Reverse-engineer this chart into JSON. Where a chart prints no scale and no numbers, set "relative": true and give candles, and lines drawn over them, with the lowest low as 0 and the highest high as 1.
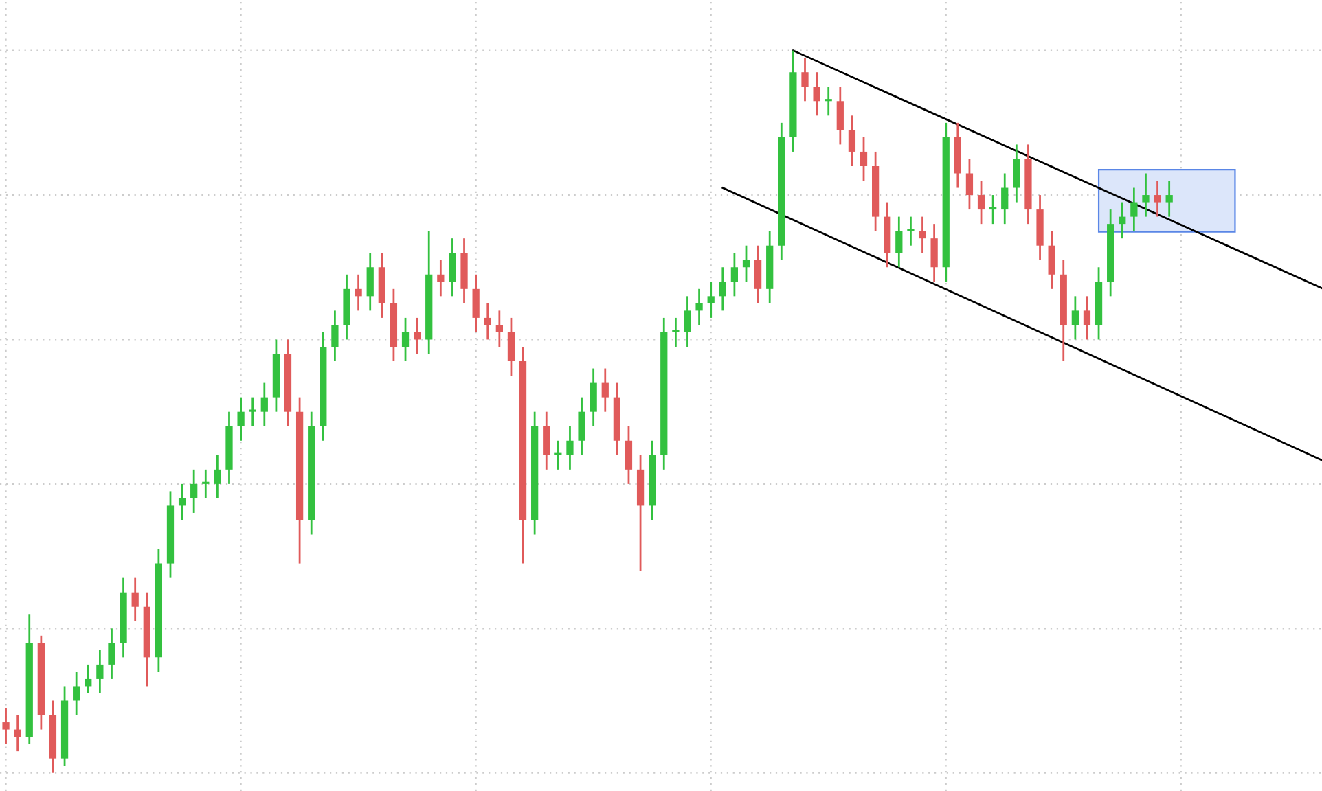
{
  "chart_data": {
    "type": "candlestick",
    "relative": true,
    "grid": true,
    "categories": [
      null,
      null,
      null,
      null,
      null,
      null,
      null,
      null,
      null,
      null,
      null,
      null,
      null,
      null,
      null,
      null,
      null,
      null,
      null,
      null,
      null,
      null,
      null,
      null,
      null,
      null,
      null,
      null,
      null,
      null,
      null,
      null,
      null,
      null,
      null,
      null,
      null,
      null,
      null,
      null,
      null,
      null,
      null,
      null,
      null,
      null,
      null,
      null,
      null,
      null,
      null,
      null,
      null,
      null,
      null,
      null,
      null,
      null,
      null,
      null,
      null,
      null,
      null,
      null,
      null,
      null,
      null,
      null,
      null,
      null,
      null,
      null,
      null,
      null,
      null,
      null,
      null,
      null,
      null,
      null,
      null,
      null,
      null,
      null,
      null,
      null,
      null,
      null,
      null,
      null,
      null,
      null,
      null,
      null,
      null,
      null,
      null,
      null,
      null,
      null,
      null,
      null,
      null,
      null,
      null,
      null,
      null,
      null,
      null,
      null,
      null,
      null,
      null
    ],
    "ohlc": [
      [
        0.07,
        0.09,
        0.04,
        0.06
      ],
      [
        0.06,
        0.08,
        0.03,
        0.05
      ],
      [
        0.05,
        0.22,
        0.04,
        0.18
      ],
      [
        0.18,
        0.19,
        0.06,
        0.08
      ],
      [
        0.08,
        0.1,
        0,
        0.02
      ],
      [
        0.02,
        0.12,
        0.01,
        0.1
      ],
      [
        0.1,
        0.14,
        0.08,
        0.12
      ],
      [
        0.12,
        0.15,
        0.11,
        0.13
      ],
      [
        0.13,
        0.17,
        0.11,
        0.15
      ],
      [
        0.15,
        0.2,
        0.13,
        0.18
      ],
      [
        0.18,
        0.27,
        0.16,
        0.25
      ],
      [
        0.25,
        0.27,
        0.21,
        0.23
      ],
      [
        0.23,
        0.25,
        0.12,
        0.16
      ],
      [
        0.16,
        0.31,
        0.14,
        0.29
      ],
      [
        0.29,
        0.39,
        0.27,
        0.37
      ],
      [
        0.37,
        0.4,
        0.35,
        0.38
      ],
      [
        0.38,
        0.42,
        0.36,
        0.4
      ],
      [
        0.4,
        0.42,
        0.38,
        0.4
      ],
      [
        0.4,
        0.44,
        0.38,
        0.42
      ],
      [
        0.42,
        0.5,
        0.4,
        0.48
      ],
      [
        0.48,
        0.52,
        0.46,
        0.5
      ],
      [
        0.5,
        0.52,
        0.48,
        0.5
      ],
      [
        0.5,
        0.54,
        0.48,
        0.52
      ],
      [
        0.52,
        0.6,
        0.5,
        0.58
      ],
      [
        0.58,
        0.6,
        0.48,
        0.5
      ],
      [
        0.5,
        0.52,
        0.29,
        0.35
      ],
      [
        0.35,
        0.5,
        0.33,
        0.48
      ],
      [
        0.48,
        0.61,
        0.46,
        0.59
      ],
      [
        0.59,
        0.64,
        0.57,
        0.62
      ],
      [
        0.62,
        0.69,
        0.6,
        0.67
      ],
      [
        0.67,
        0.69,
        0.64,
        0.66
      ],
      [
        0.66,
        0.72,
        0.64,
        0.7
      ],
      [
        0.7,
        0.72,
        0.63,
        0.65
      ],
      [
        0.65,
        0.67,
        0.57,
        0.59
      ],
      [
        0.59,
        0.63,
        0.57,
        0.61
      ],
      [
        0.61,
        0.63,
        0.58,
        0.6
      ],
      [
        0.6,
        0.75,
        0.58,
        0.69
      ],
      [
        0.69,
        0.71,
        0.66,
        0.68
      ],
      [
        0.68,
        0.74,
        0.66,
        0.72
      ],
      [
        0.72,
        0.74,
        0.65,
        0.67
      ],
      [
        0.67,
        0.69,
        0.61,
        0.63
      ],
      [
        0.63,
        0.65,
        0.6,
        0.62
      ],
      [
        0.62,
        0.64,
        0.59,
        0.61
      ],
      [
        0.61,
        0.63,
        0.55,
        0.57
      ],
      [
        0.57,
        0.59,
        0.29,
        0.35
      ],
      [
        0.35,
        0.5,
        0.33,
        0.48
      ],
      [
        0.48,
        0.5,
        0.42,
        0.44
      ],
      [
        0.44,
        0.46,
        0.42,
        0.44
      ],
      [
        0.44,
        0.48,
        0.42,
        0.46
      ],
      [
        0.46,
        0.52,
        0.44,
        0.5
      ],
      [
        0.5,
        0.56,
        0.48,
        0.54
      ],
      [
        0.54,
        0.56,
        0.5,
        0.52
      ],
      [
        0.52,
        0.54,
        0.44,
        0.46
      ],
      [
        0.46,
        0.48,
        0.4,
        0.42
      ],
      [
        0.42,
        0.44,
        0.28,
        0.37
      ],
      [
        0.37,
        0.46,
        0.35,
        0.44
      ],
      [
        0.44,
        0.63,
        0.42,
        0.61
      ],
      [
        0.61,
        0.63,
        0.59,
        0.61
      ],
      [
        0.61,
        0.66,
        0.59,
        0.64
      ],
      [
        0.64,
        0.67,
        0.62,
        0.65
      ],
      [
        0.65,
        0.68,
        0.63,
        0.66
      ],
      [
        0.66,
        0.7,
        0.64,
        0.68
      ],
      [
        0.68,
        0.72,
        0.66,
        0.7
      ],
      [
        0.7,
        0.73,
        0.68,
        0.71
      ],
      [
        0.71,
        0.73,
        0.65,
        0.67
      ],
      [
        0.67,
        0.75,
        0.65,
        0.73
      ],
      [
        0.73,
        0.9,
        0.71,
        0.88
      ],
      [
        0.88,
        1,
        0.86,
        0.97
      ],
      [
        0.97,
        0.99,
        0.93,
        0.95
      ],
      [
        0.95,
        0.97,
        0.91,
        0.93
      ],
      [
        0.93,
        0.95,
        0.91,
        0.93
      ],
      [
        0.93,
        0.95,
        0.87,
        0.89
      ],
      [
        0.89,
        0.91,
        0.84,
        0.86
      ],
      [
        0.86,
        0.88,
        0.82,
        0.84
      ],
      [
        0.84,
        0.86,
        0.75,
        0.77
      ],
      [
        0.77,
        0.79,
        0.7,
        0.72
      ],
      [
        0.72,
        0.77,
        0.7,
        0.75
      ],
      [
        0.75,
        0.77,
        0.73,
        0.75
      ],
      [
        0.75,
        0.77,
        0.72,
        0.74
      ],
      [
        0.74,
        0.76,
        0.68,
        0.7
      ],
      [
        0.7,
        0.9,
        0.68,
        0.88
      ],
      [
        0.88,
        0.9,
        0.81,
        0.83
      ],
      [
        0.83,
        0.85,
        0.78,
        0.8
      ],
      [
        0.8,
        0.82,
        0.76,
        0.78
      ],
      [
        0.78,
        0.8,
        0.76,
        0.78
      ],
      [
        0.78,
        0.83,
        0.76,
        0.81
      ],
      [
        0.81,
        0.87,
        0.79,
        0.85
      ],
      [
        0.85,
        0.87,
        0.76,
        0.78
      ],
      [
        0.78,
        0.8,
        0.71,
        0.73
      ],
      [
        0.73,
        0.75,
        0.67,
        0.69
      ],
      [
        0.69,
        0.71,
        0.57,
        0.62
      ],
      [
        0.62,
        0.66,
        0.6,
        0.64
      ],
      [
        0.64,
        0.66,
        0.6,
        0.62
      ],
      [
        0.62,
        0.7,
        0.6,
        0.68
      ],
      [
        0.68,
        0.78,
        0.66,
        0.76
      ],
      [
        0.76,
        0.79,
        0.74,
        0.77
      ],
      [
        0.77,
        0.81,
        0.75,
        0.79
      ],
      [
        0.79,
        0.83,
        0.77,
        0.8
      ],
      [
        0.8,
        0.82,
        0.77,
        0.79
      ],
      [
        0.79,
        0.82,
        0.77,
        0.8
      ],
      null,
      null,
      null,
      null,
      null,
      null,
      null,
      null,
      null,
      null,
      null,
      null,
      null
    ],
    "colors": [
      "#e05a5a",
      "#e05a5a",
      "#33c13f",
      "#e05a5a",
      "#e05a5a",
      "#33c13f",
      "#33c13f",
      "#33c13f",
      "#33c13f",
      "#33c13f",
      "#33c13f",
      "#e05a5a",
      "#e05a5a",
      "#33c13f",
      "#33c13f",
      "#33c13f",
      "#33c13f",
      "#33c13f",
      "#33c13f",
      "#33c13f",
      "#33c13f",
      "#33c13f",
      "#33c13f",
      "#33c13f",
      "#e05a5a",
      "#e05a5a",
      "#33c13f",
      "#33c13f",
      "#33c13f",
      "#33c13f",
      "#e05a5a",
      "#33c13f",
      "#e05a5a",
      "#e05a5a",
      "#33c13f",
      "#e05a5a",
      "#33c13f",
      "#e05a5a",
      "#33c13f",
      "#e05a5a",
      "#e05a5a",
      "#e05a5a",
      "#e05a5a",
      "#e05a5a",
      "#e05a5a",
      "#33c13f",
      "#e05a5a",
      "#33c13f",
      "#33c13f",
      "#33c13f",
      "#33c13f",
      "#e05a5a",
      "#e05a5a",
      "#e05a5a",
      "#e05a5a",
      "#33c13f",
      "#33c13f",
      "#33c13f",
      "#33c13f",
      "#33c13f",
      "#33c13f",
      "#33c13f",
      "#33c13f",
      "#33c13f",
      "#e05a5a",
      "#33c13f",
      "#33c13f",
      "#33c13f",
      "#e05a5a",
      "#e05a5a",
      "#33c13f",
      "#e05a5a",
      "#e05a5a",
      "#e05a5a",
      "#e05a5a",
      "#e05a5a",
      "#33c13f",
      "#33c13f",
      "#e05a5a",
      "#e05a5a",
      "#33c13f",
      "#e05a5a",
      "#e05a5a",
      "#e05a5a",
      "#33c13f",
      "#33c13f",
      "#33c13f",
      "#e05a5a",
      "#e05a5a",
      "#e05a5a",
      "#e05a5a",
      "#33c13f",
      "#e05a5a",
      "#33c13f",
      "#33c13f",
      "#33c13f",
      "#33c13f",
      "#33c13f",
      "#e05a5a",
      "#33c13f",
      null,
      null,
      null,
      null,
      null,
      null,
      null,
      null,
      null,
      null,
      null,
      null,
      null
    ],
    "series": [
      {
        "type": "line",
        "values": [
          null,
          null,
          null,
          null,
          null,
          null,
          null,
          null,
          null,
          null,
          null,
          null,
          null,
          null,
          null,
          null,
          null,
          null,
          null,
          null,
          null,
          null,
          null,
          null,
          null,
          null,
          null,
          null,
          null,
          null,
          null,
          null,
          null,
          null,
          null,
          null,
          null,
          null,
          null,
          null,
          null,
          null,
          null,
          null,
          null,
          null,
          null,
          null,
          null,
          null,
          null,
          null,
          null,
          null,
          null,
          null,
          null,
          null,
          null,
          null,
          null,
          null,
          null,
          null,
          null,
          null,
          null,
          1.0,
          null,
          null,
          null,
          null,
          null,
          null,
          null,
          null,
          null,
          null,
          null,
          null,
          null,
          null,
          null,
          null,
          null,
          null,
          null,
          null,
          null,
          null,
          null,
          null,
          null,
          null,
          null,
          null,
          null,
          null,
          null,
          null,
          null,
          null,
          null,
          null,
          null,
          null,
          null,
          null,
          null,
          null,
          null,
          null,
          0.671
        ],
        "color": "#000000"
      },
      {
        "type": "line",
        "values": [
          null,
          null,
          null,
          null,
          null,
          null,
          null,
          null,
          null,
          null,
          null,
          null,
          null,
          null,
          null,
          null,
          null,
          null,
          null,
          null,
          null,
          null,
          null,
          null,
          null,
          null,
          null,
          null,
          null,
          null,
          null,
          null,
          null,
          null,
          null,
          null,
          null,
          null,
          null,
          null,
          null,
          null,
          null,
          null,
          null,
          null,
          null,
          null,
          null,
          null,
          null,
          null,
          null,
          null,
          null,
          null,
          null,
          null,
          null,
          null,
          null,
          0.81,
          null,
          null,
          null,
          null,
          null,
          null,
          null,
          null,
          null,
          null,
          null,
          null,
          null,
          null,
          null,
          null,
          null,
          null,
          null,
          null,
          null,
          null,
          null,
          null,
          null,
          null,
          null,
          null,
          null,
          null,
          null,
          null,
          null,
          null,
          null,
          null,
          null,
          null,
          null,
          null,
          null,
          null,
          null,
          null,
          null,
          null,
          null,
          null,
          null,
          null,
          0.433
        ],
        "color": "#000000"
      }
    ]
  }
}
